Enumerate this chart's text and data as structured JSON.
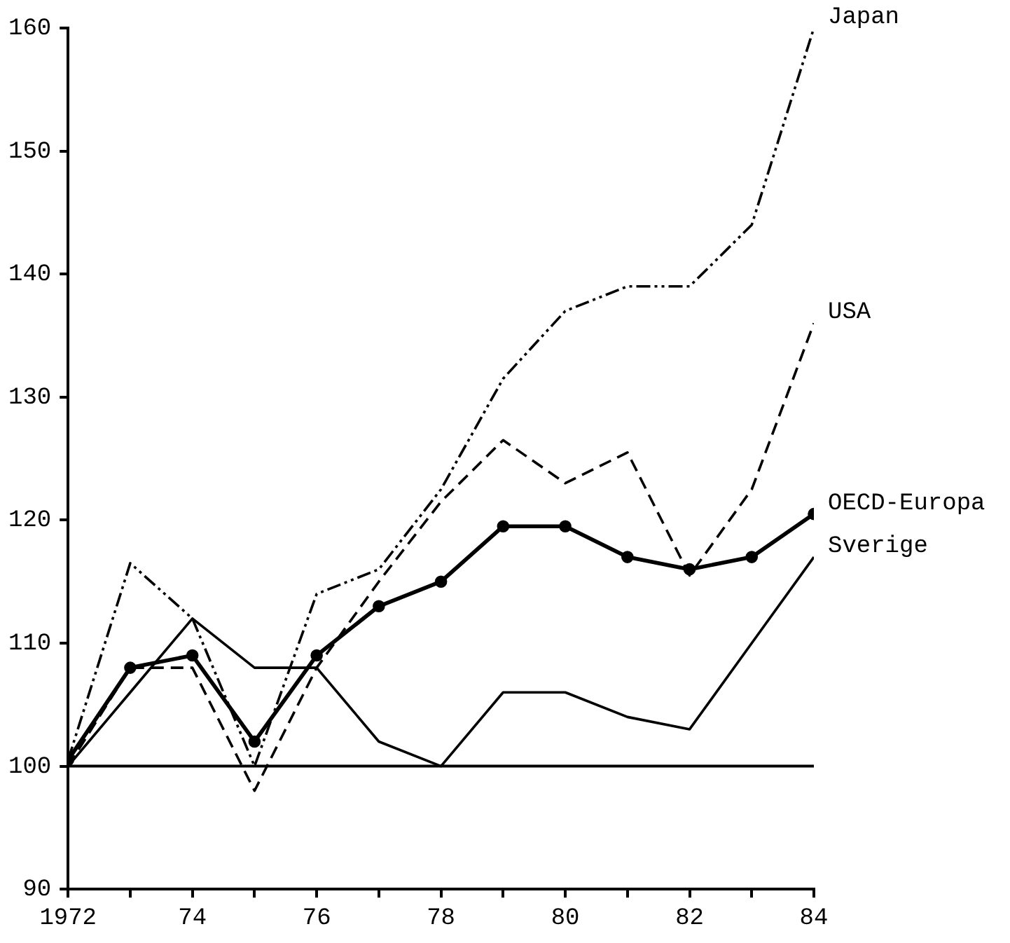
{
  "chart_data": {
    "type": "line",
    "x": [
      1972,
      1973,
      1974,
      1975,
      1976,
      1977,
      1978,
      1979,
      1980,
      1981,
      1982,
      1983,
      1984
    ],
    "xlim": [
      1972,
      1984
    ],
    "xticks": [
      {
        "value": 1972,
        "label": "1972"
      },
      {
        "value": 1973,
        "label": null
      },
      {
        "value": 1974,
        "label": "74"
      },
      {
        "value": 1975,
        "label": null
      },
      {
        "value": 1976,
        "label": "76"
      },
      {
        "value": 1977,
        "label": null
      },
      {
        "value": 1978,
        "label": "78"
      },
      {
        "value": 1979,
        "label": null
      },
      {
        "value": 1980,
        "label": "80"
      },
      {
        "value": 1981,
        "label": null
      },
      {
        "value": 1982,
        "label": "82"
      },
      {
        "value": 1983,
        "label": null
      },
      {
        "value": 1984,
        "label": "84"
      }
    ],
    "ylim": [
      90,
      160
    ],
    "yticks": [
      90,
      100,
      110,
      120,
      130,
      140,
      150,
      160
    ],
    "series": [
      {
        "name": "Japan",
        "color": "#000000",
        "line_style": "dotted",
        "marker": "none",
        "values": [
          100.5,
          116.5,
          112,
          100,
          114,
          116,
          122.5,
          131.5,
          137,
          139,
          139,
          144,
          160
        ]
      },
      {
        "name": "USA",
        "color": "#000000",
        "line_style": "dashed",
        "marker": "none",
        "values": [
          100,
          108,
          108,
          98,
          108,
          115,
          121.5,
          126.5,
          123,
          125.5,
          115.5,
          122.5,
          136
        ]
      },
      {
        "name": "OECD-Europa",
        "color": "#000000",
        "line_style": "solid",
        "marker": "circle",
        "values": [
          100.5,
          108,
          109,
          102,
          109,
          113,
          115,
          119.5,
          119.5,
          117,
          116,
          117,
          120.5
        ]
      },
      {
        "name": "Sverige",
        "color": "#000000",
        "line_style": "solid",
        "marker": "none",
        "values": [
          100,
          106,
          112,
          108,
          108,
          102,
          100,
          106,
          106,
          104,
          103,
          110,
          117
        ]
      }
    ],
    "ref_lines": [
      {
        "axis": "y",
        "value": 100,
        "color": "#000000"
      }
    ],
    "legend": false
  }
}
